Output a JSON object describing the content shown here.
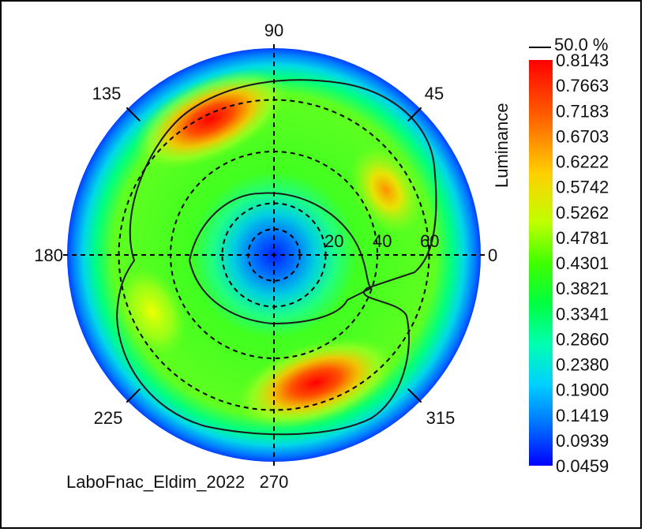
{
  "chart_data": {
    "type": "heatmap",
    "subtype": "polar-conoscopic",
    "quantity_label": "Luminance",
    "contour_label": "50.0 %",
    "source_label": "LaboFnac_Eldim_2022",
    "angle_labels": [
      "0",
      "45",
      "90",
      "135",
      "180",
      "225",
      "270",
      "315"
    ],
    "radial_labels": [
      "20",
      "40",
      "60"
    ],
    "colorbar_values": [
      "0.8143",
      "0.7663",
      "0.7183",
      "0.6703",
      "0.6222",
      "0.5742",
      "0.5262",
      "0.4781",
      "0.4301",
      "0.3821",
      "0.3341",
      "0.2860",
      "0.2380",
      "0.1900",
      "0.1419",
      "0.0939",
      "0.0459"
    ],
    "colorbar_range": [
      0.0459,
      0.8143
    ],
    "hotspots": [
      {
        "azimuth_deg": 115,
        "inclination_deg": 58,
        "value": 0.81
      },
      {
        "azimuth_deg": 288,
        "inclination_deg": 52,
        "value": 0.81
      },
      {
        "azimuth_deg": 30,
        "inclination_deg": 50,
        "value": 0.66
      },
      {
        "azimuth_deg": 205,
        "inclination_deg": 52,
        "value": 0.62
      }
    ],
    "center_value": 0.1,
    "edge_value": 0.12,
    "colormap": [
      "#0000ff",
      "#00bfff",
      "#00ff80",
      "#40ff00",
      "#ffff00",
      "#ff8000",
      "#ff0000"
    ]
  }
}
